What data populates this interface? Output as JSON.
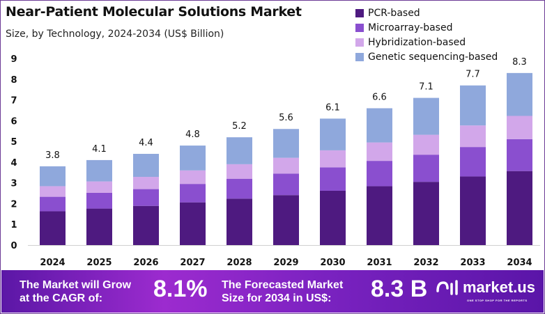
{
  "chart_data": {
    "type": "bar",
    "stacked": true,
    "title": "Near-Patient Molecular Solutions Market",
    "subtitle": "Size, by Technology, 2024-2034 (US$ Billion)",
    "xlabel": "",
    "ylabel": "",
    "ylim": [
      0,
      9
    ],
    "yticks": [
      "0",
      "1",
      "2",
      "3",
      "4",
      "5",
      "6",
      "7",
      "8",
      "9"
    ],
    "grid": false,
    "legend_position": "top-right",
    "categories": [
      "2024",
      "2025",
      "2026",
      "2027",
      "2028",
      "2029",
      "2030",
      "2031",
      "2032",
      "2033",
      "2034"
    ],
    "totals": [
      "3.8",
      "4.1",
      "4.4",
      "4.8",
      "5.2",
      "5.6",
      "6.1",
      "6.6",
      "7.1",
      "7.7",
      "8.3"
    ],
    "series": [
      {
        "name": "PCR-based",
        "color": "#4e1a80",
        "values": [
          1.63,
          1.76,
          1.89,
          2.06,
          2.24,
          2.41,
          2.62,
          2.84,
          3.05,
          3.31,
          3.57
        ]
      },
      {
        "name": "Microarray-based",
        "color": "#8a4fcf",
        "values": [
          0.7,
          0.76,
          0.81,
          0.89,
          0.96,
          1.04,
          1.13,
          1.22,
          1.31,
          1.42,
          1.54
        ]
      },
      {
        "name": "Hybridization-based",
        "color": "#d2a7ea",
        "values": [
          0.51,
          0.55,
          0.59,
          0.65,
          0.7,
          0.76,
          0.82,
          0.89,
          0.96,
          1.04,
          1.12
        ]
      },
      {
        "name": "Genetic sequencing-based",
        "color": "#8fa8dc",
        "values": [
          0.96,
          1.03,
          1.11,
          1.2,
          1.3,
          1.39,
          1.53,
          1.65,
          1.78,
          1.93,
          2.07
        ]
      }
    ]
  },
  "banner": {
    "cagr_text_1": "The Market will Grow",
    "cagr_text_2": "at the CAGR of:",
    "cagr_value": "8.1%",
    "forecast_text_1": "The Forecasted Market",
    "forecast_text_2": "Size for 2034 in US$:",
    "forecast_value": "8.3 B",
    "logo_name": "market.us",
    "logo_tagline": "ONE STOP SHOP FOR THE REPORTS"
  }
}
